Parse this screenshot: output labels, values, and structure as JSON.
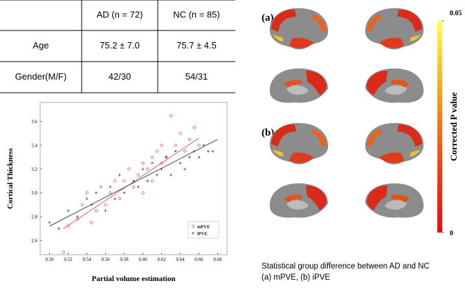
{
  "table": {
    "header": [
      "AD (n = 72)",
      "NC (n = 85)"
    ],
    "rows": [
      [
        "Age",
        "75.2 ± 7.0",
        "75.7 ± 4.5"
      ],
      [
        "Gender(M/F)",
        "42/30",
        "54/31"
      ]
    ]
  },
  "chart_data": {
    "type": "scatter",
    "x_label": "Partial volume estimation",
    "y_label": "Cortical Thickness",
    "xlim": [
      0.49,
      0.69
    ],
    "ylim": [
      2.48,
      3.76
    ],
    "xticks": [
      {
        "value": 0.5,
        "label": "0.50"
      },
      0.52,
      0.54,
      0.56,
      0.58,
      {
        "value": 0.6,
        "label": "0.60"
      },
      0.62,
      0.64,
      0.66,
      0.68
    ],
    "yticks": [
      2.6,
      2.8,
      {
        "value": 3,
        "label": "3.0"
      },
      3.2,
      3.4,
      3.6
    ],
    "legend": "lower right",
    "series": [
      {
        "name": "mPVE",
        "color": "#e06060",
        "marker": "circle",
        "x": [
          0.515,
          0.52,
          0.53,
          0.535,
          0.54,
          0.545,
          0.55,
          0.555,
          0.56,
          0.565,
          0.57,
          0.575,
          0.58,
          0.585,
          0.59,
          0.595,
          0.6,
          0.6,
          0.605,
          0.61,
          0.61,
          0.615,
          0.62,
          0.62,
          0.625,
          0.63,
          0.635,
          0.64,
          0.645,
          0.65,
          0.655,
          0.66
        ],
        "values": [
          2.5,
          2.72,
          2.78,
          2.9,
          3.0,
          2.75,
          2.85,
          3.05,
          2.9,
          3.0,
          3.1,
          2.95,
          3.1,
          3.2,
          3.05,
          3.15,
          3.25,
          3.0,
          3.2,
          3.3,
          3.1,
          3.35,
          3.25,
          3.4,
          3.3,
          3.65,
          3.4,
          3.5,
          3.35,
          3.45,
          3.55,
          3.4
        ],
        "fit": {
          "x": [
            0.515,
            0.66
          ],
          "y": [
            2.7,
            3.46
          ]
        }
      },
      {
        "name": "iPVE",
        "color": "#3a4a6a",
        "marker": "plus",
        "x": [
          0.5,
          0.51,
          0.52,
          0.53,
          0.54,
          0.545,
          0.55,
          0.56,
          0.565,
          0.57,
          0.575,
          0.58,
          0.59,
          0.595,
          0.6,
          0.605,
          0.61,
          0.615,
          0.62,
          0.625,
          0.63,
          0.635,
          0.64,
          0.645,
          0.65,
          0.655,
          0.66,
          0.665,
          0.67,
          0.675
        ],
        "values": [
          2.75,
          2.7,
          2.85,
          2.8,
          2.95,
          2.9,
          3.0,
          2.85,
          3.05,
          2.95,
          3.15,
          3.0,
          3.1,
          3.05,
          3.2,
          3.1,
          3.25,
          3.15,
          3.2,
          3.3,
          3.15,
          3.35,
          3.25,
          3.2,
          3.3,
          3.35,
          3.3,
          3.4,
          3.35,
          3.35
        ],
        "fit": {
          "x": [
            0.5,
            0.68
          ],
          "y": [
            2.72,
            3.45
          ]
        }
      }
    ]
  },
  "figure": {
    "panels": [
      {
        "label": "(a)"
      },
      {
        "label": "(b)"
      }
    ],
    "colorbar": {
      "ticks": [
        0.05,
        0
      ],
      "label": "Corrected P value"
    },
    "caption": [
      "Statistical group difference between AD and NC",
      "(a) mPVE, (b) iPVE"
    ]
  }
}
